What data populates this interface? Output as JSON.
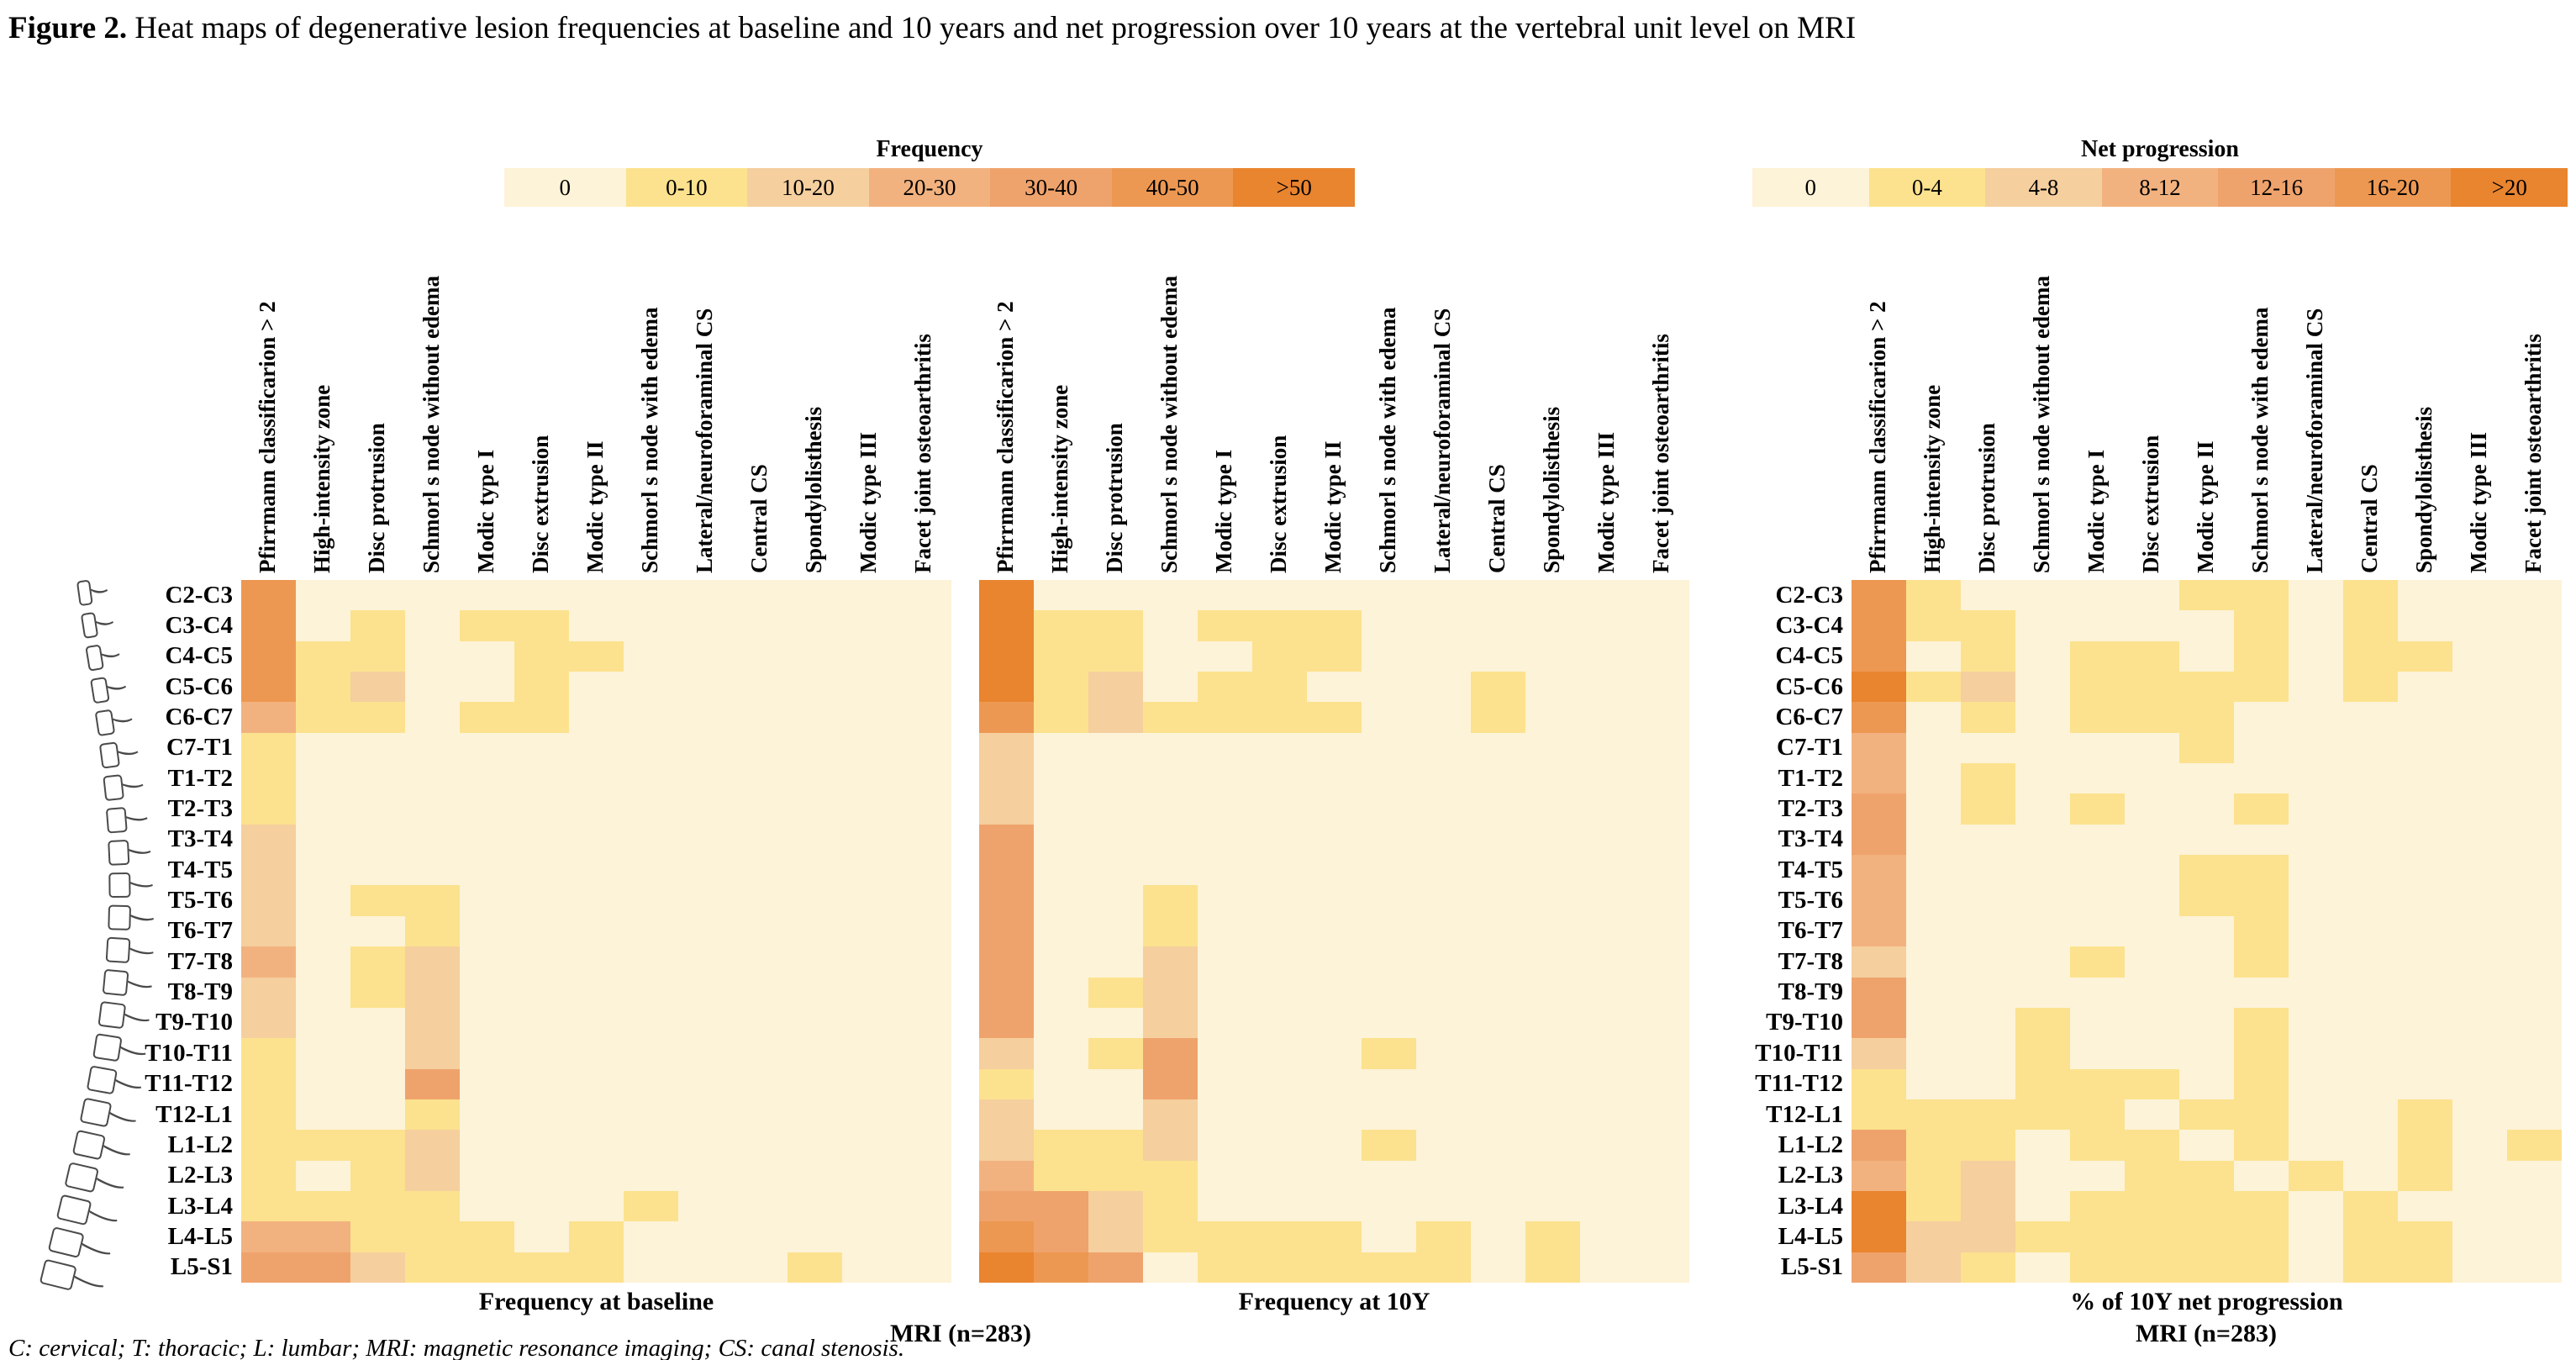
{
  "figure": {
    "label": "Figure 2.",
    "title_rest": " Heat maps of degenerative lesion frequencies at baseline and 10 years and net progression over 10 years at the vertebral unit level on MRI"
  },
  "footer_note": "C: cervical; T: thoracic; L: lumbar; MRI: magnetic resonance imaging; CS: canal stenosis.",
  "bin_colors": [
    "#FDF3D8",
    "#FCE28E",
    "#F5CF9E",
    "#F2B27F",
    "#EFA36C",
    "#ED9852",
    "#E9842F"
  ],
  "legends": {
    "frequency": {
      "title": "Frequency",
      "labels": [
        "0",
        "0-10",
        "10-20",
        "20-30",
        "30-40",
        "40-50",
        ">50"
      ]
    },
    "net_progression": {
      "title": "Net progression",
      "labels": [
        "0",
        "0-4",
        "4-8",
        "8-12",
        "12-16",
        "16-20",
        ">20"
      ]
    }
  },
  "captions": {
    "map1": "Frequency at baseline",
    "map2": "Frequency at 10Y",
    "map3": "% of 10Y net progression",
    "mri": "MRI (n=283)"
  },
  "vertebral_units": [
    "C2-C3",
    "C3-C4",
    "C4-C5",
    "C5-C6",
    "C6-C7",
    "C7-T1",
    "T1-T2",
    "T2-T3",
    "T3-T4",
    "T4-T5",
    "T5-T6",
    "T6-T7",
    "T7-T8",
    "T8-T9",
    "T9-T10",
    "T10-T11",
    "T11-T12",
    "T12-L1",
    "L1-L2",
    "L2-L3",
    "L3-L4",
    "L4-L5",
    "L5-S1"
  ],
  "lesion_types": [
    "Pfirrmann classificarion > 2",
    "High-intensity zone",
    "Disc protrusion",
    "Schmorl s node without edema",
    "Modic type I",
    "Disc extrusion",
    "Modic type II",
    "Schmorl s node with edema",
    "Lateral/neuroforaminal CS",
    "Central CS",
    "Spondylolisthesis",
    "Modic type III",
    "Facet joint osteoarthritis"
  ],
  "chart_data": [
    {
      "type": "heatmap",
      "title": "Frequency at baseline",
      "legend": "Frequency",
      "legend_bins": [
        "0",
        "0-10",
        "10-20",
        "20-30",
        "30-40",
        "40-50",
        ">50"
      ],
      "rows": [
        "C2-C3",
        "C3-C4",
        "C4-C5",
        "C5-C6",
        "C6-C7",
        "C7-T1",
        "T1-T2",
        "T2-T3",
        "T3-T4",
        "T4-T5",
        "T5-T6",
        "T6-T7",
        "T7-T8",
        "T8-T9",
        "T9-T10",
        "T10-T11",
        "T11-T12",
        "T12-L1",
        "L1-L2",
        "L2-L3",
        "L3-L4",
        "L4-L5",
        "L5-S1"
      ],
      "columns": [
        "Pfirrmann classificarion > 2",
        "High-intensity zone",
        "Disc protrusion",
        "Schmorl s node without edema",
        "Modic type I",
        "Disc extrusion",
        "Modic type II",
        "Schmorl s node with edema",
        "Lateral/neuroforaminal CS",
        "Central CS",
        "Spondylolisthesis",
        "Modic type III",
        "Facet joint osteoarthritis"
      ],
      "values_bin_index": [
        [
          5,
          0,
          0,
          0,
          0,
          0,
          0,
          0,
          0,
          0,
          0,
          0,
          0
        ],
        [
          5,
          0,
          1,
          0,
          1,
          1,
          0,
          0,
          0,
          0,
          0,
          0,
          0
        ],
        [
          5,
          1,
          1,
          0,
          0,
          1,
          1,
          0,
          0,
          0,
          0,
          0,
          0
        ],
        [
          5,
          1,
          2,
          0,
          0,
          1,
          0,
          0,
          0,
          0,
          0,
          0,
          0
        ],
        [
          3,
          1,
          1,
          0,
          1,
          1,
          0,
          0,
          0,
          0,
          0,
          0,
          0
        ],
        [
          1,
          0,
          0,
          0,
          0,
          0,
          0,
          0,
          0,
          0,
          0,
          0,
          0
        ],
        [
          1,
          0,
          0,
          0,
          0,
          0,
          0,
          0,
          0,
          0,
          0,
          0,
          0
        ],
        [
          1,
          0,
          0,
          0,
          0,
          0,
          0,
          0,
          0,
          0,
          0,
          0,
          0
        ],
        [
          2,
          0,
          0,
          0,
          0,
          0,
          0,
          0,
          0,
          0,
          0,
          0,
          0
        ],
        [
          2,
          0,
          0,
          0,
          0,
          0,
          0,
          0,
          0,
          0,
          0,
          0,
          0
        ],
        [
          2,
          0,
          1,
          1,
          0,
          0,
          0,
          0,
          0,
          0,
          0,
          0,
          0
        ],
        [
          2,
          0,
          0,
          1,
          0,
          0,
          0,
          0,
          0,
          0,
          0,
          0,
          0
        ],
        [
          3,
          0,
          1,
          2,
          0,
          0,
          0,
          0,
          0,
          0,
          0,
          0,
          0
        ],
        [
          2,
          0,
          1,
          2,
          0,
          0,
          0,
          0,
          0,
          0,
          0,
          0,
          0
        ],
        [
          2,
          0,
          0,
          2,
          0,
          0,
          0,
          0,
          0,
          0,
          0,
          0,
          0
        ],
        [
          1,
          0,
          0,
          2,
          0,
          0,
          0,
          0,
          0,
          0,
          0,
          0,
          0
        ],
        [
          1,
          0,
          0,
          4,
          0,
          0,
          0,
          0,
          0,
          0,
          0,
          0,
          0
        ],
        [
          1,
          0,
          0,
          1,
          0,
          0,
          0,
          0,
          0,
          0,
          0,
          0,
          0
        ],
        [
          1,
          1,
          1,
          2,
          0,
          0,
          0,
          0,
          0,
          0,
          0,
          0,
          0
        ],
        [
          1,
          0,
          1,
          2,
          0,
          0,
          0,
          0,
          0,
          0,
          0,
          0,
          0
        ],
        [
          1,
          1,
          1,
          1,
          0,
          0,
          0,
          1,
          0,
          0,
          0,
          0,
          0
        ],
        [
          3,
          3,
          1,
          1,
          1,
          0,
          1,
          0,
          0,
          0,
          0,
          0,
          0
        ],
        [
          4,
          4,
          2,
          1,
          1,
          1,
          1,
          0,
          0,
          0,
          1,
          0,
          0
        ]
      ]
    },
    {
      "type": "heatmap",
      "title": "Frequency at 10Y",
      "legend": "Frequency",
      "legend_bins": [
        "0",
        "0-10",
        "10-20",
        "20-30",
        "30-40",
        "40-50",
        ">50"
      ],
      "rows": [
        "C2-C3",
        "C3-C4",
        "C4-C5",
        "C5-C6",
        "C6-C7",
        "C7-T1",
        "T1-T2",
        "T2-T3",
        "T3-T4",
        "T4-T5",
        "T5-T6",
        "T6-T7",
        "T7-T8",
        "T8-T9",
        "T9-T10",
        "T10-T11",
        "T11-T12",
        "T12-L1",
        "L1-L2",
        "L2-L3",
        "L3-L4",
        "L4-L5",
        "L5-S1"
      ],
      "columns": [
        "Pfirrmann classificarion > 2",
        "High-intensity zone",
        "Disc protrusion",
        "Schmorl s node without edema",
        "Modic type I",
        "Disc extrusion",
        "Modic type II",
        "Schmorl s node with edema",
        "Lateral/neuroforaminal CS",
        "Central CS",
        "Spondylolisthesis",
        "Modic type III",
        "Facet joint osteoarthritis"
      ],
      "values_bin_index": [
        [
          6,
          0,
          0,
          0,
          0,
          0,
          0,
          0,
          0,
          0,
          0,
          0,
          0
        ],
        [
          6,
          1,
          1,
          0,
          1,
          1,
          1,
          0,
          0,
          0,
          0,
          0,
          0
        ],
        [
          6,
          1,
          1,
          0,
          0,
          1,
          1,
          0,
          0,
          0,
          0,
          0,
          0
        ],
        [
          6,
          1,
          2,
          0,
          1,
          1,
          0,
          0,
          0,
          1,
          0,
          0,
          0
        ],
        [
          5,
          1,
          2,
          1,
          1,
          1,
          1,
          0,
          0,
          1,
          0,
          0,
          0
        ],
        [
          2,
          0,
          0,
          0,
          0,
          0,
          0,
          0,
          0,
          0,
          0,
          0,
          0
        ],
        [
          2,
          0,
          0,
          0,
          0,
          0,
          0,
          0,
          0,
          0,
          0,
          0,
          0
        ],
        [
          2,
          0,
          0,
          0,
          0,
          0,
          0,
          0,
          0,
          0,
          0,
          0,
          0
        ],
        [
          4,
          0,
          0,
          0,
          0,
          0,
          0,
          0,
          0,
          0,
          0,
          0,
          0
        ],
        [
          4,
          0,
          0,
          0,
          0,
          0,
          0,
          0,
          0,
          0,
          0,
          0,
          0
        ],
        [
          4,
          0,
          0,
          1,
          0,
          0,
          0,
          0,
          0,
          0,
          0,
          0,
          0
        ],
        [
          4,
          0,
          0,
          1,
          0,
          0,
          0,
          0,
          0,
          0,
          0,
          0,
          0
        ],
        [
          4,
          0,
          0,
          2,
          0,
          0,
          0,
          0,
          0,
          0,
          0,
          0,
          0
        ],
        [
          4,
          0,
          1,
          2,
          0,
          0,
          0,
          0,
          0,
          0,
          0,
          0,
          0
        ],
        [
          4,
          0,
          0,
          2,
          0,
          0,
          0,
          0,
          0,
          0,
          0,
          0,
          0
        ],
        [
          2,
          0,
          1,
          4,
          0,
          0,
          0,
          1,
          0,
          0,
          0,
          0,
          0
        ],
        [
          1,
          0,
          0,
          4,
          0,
          0,
          0,
          0,
          0,
          0,
          0,
          0,
          0
        ],
        [
          2,
          0,
          0,
          2,
          0,
          0,
          0,
          0,
          0,
          0,
          0,
          0,
          0
        ],
        [
          2,
          1,
          1,
          2,
          0,
          0,
          0,
          1,
          0,
          0,
          0,
          0,
          0
        ],
        [
          3,
          1,
          1,
          1,
          0,
          0,
          0,
          0,
          0,
          0,
          0,
          0,
          0
        ],
        [
          4,
          4,
          2,
          1,
          0,
          0,
          0,
          0,
          0,
          0,
          0,
          0,
          0
        ],
        [
          5,
          4,
          2,
          1,
          1,
          1,
          1,
          0,
          1,
          0,
          1,
          0,
          0
        ],
        [
          6,
          5,
          4,
          0,
          1,
          1,
          1,
          1,
          1,
          0,
          1,
          0,
          0
        ]
      ]
    },
    {
      "type": "heatmap",
      "title": "% of 10Y net progression",
      "legend": "Net progression",
      "legend_bins": [
        "0",
        "0-4",
        "4-8",
        "8-12",
        "12-16",
        "16-20",
        ">20"
      ],
      "rows": [
        "C2-C3",
        "C3-C4",
        "C4-C5",
        "C5-C6",
        "C6-C7",
        "C7-T1",
        "T1-T2",
        "T2-T3",
        "T3-T4",
        "T4-T5",
        "T5-T6",
        "T6-T7",
        "T7-T8",
        "T8-T9",
        "T9-T10",
        "T10-T11",
        "T11-T12",
        "T12-L1",
        "L1-L2",
        "L2-L3",
        "L3-L4",
        "L4-L5",
        "L5-S1"
      ],
      "columns": [
        "Pfirrmann classificarion > 2",
        "High-intensity zone",
        "Disc protrusion",
        "Schmorl s node without edema",
        "Modic type I",
        "Disc extrusion",
        "Modic type II",
        "Schmorl s node with edema",
        "Lateral/neuroforaminal CS",
        "Central CS",
        "Spondylolisthesis",
        "Modic type III",
        "Facet joint osteoarthritis"
      ],
      "values_bin_index": [
        [
          5,
          1,
          0,
          0,
          0,
          0,
          1,
          1,
          0,
          1,
          0,
          0,
          0
        ],
        [
          5,
          1,
          1,
          0,
          0,
          0,
          0,
          1,
          0,
          1,
          0,
          0,
          0
        ],
        [
          5,
          0,
          1,
          0,
          1,
          1,
          0,
          1,
          0,
          1,
          1,
          0,
          0
        ],
        [
          6,
          1,
          2,
          0,
          1,
          1,
          1,
          1,
          0,
          1,
          0,
          0,
          0
        ],
        [
          5,
          0,
          1,
          0,
          1,
          1,
          1,
          0,
          0,
          0,
          0,
          0,
          0
        ],
        [
          3,
          0,
          0,
          0,
          0,
          0,
          1,
          0,
          0,
          0,
          0,
          0,
          0
        ],
        [
          3,
          0,
          1,
          0,
          0,
          0,
          0,
          0,
          0,
          0,
          0,
          0,
          0
        ],
        [
          4,
          0,
          1,
          0,
          1,
          0,
          0,
          1,
          0,
          0,
          0,
          0,
          0
        ],
        [
          4,
          0,
          0,
          0,
          0,
          0,
          0,
          0,
          0,
          0,
          0,
          0,
          0
        ],
        [
          3,
          0,
          0,
          0,
          0,
          0,
          1,
          1,
          0,
          0,
          0,
          0,
          0
        ],
        [
          3,
          0,
          0,
          0,
          0,
          0,
          1,
          1,
          0,
          0,
          0,
          0,
          0
        ],
        [
          3,
          0,
          0,
          0,
          0,
          0,
          0,
          1,
          0,
          0,
          0,
          0,
          0
        ],
        [
          2,
          0,
          0,
          0,
          1,
          0,
          0,
          1,
          0,
          0,
          0,
          0,
          0
        ],
        [
          4,
          0,
          0,
          0,
          0,
          0,
          0,
          0,
          0,
          0,
          0,
          0,
          0
        ],
        [
          4,
          0,
          0,
          1,
          0,
          0,
          0,
          1,
          0,
          0,
          0,
          0,
          0
        ],
        [
          2,
          0,
          0,
          1,
          0,
          0,
          0,
          1,
          0,
          0,
          0,
          0,
          0
        ],
        [
          1,
          0,
          0,
          1,
          1,
          1,
          0,
          1,
          0,
          0,
          0,
          0,
          0
        ],
        [
          1,
          1,
          1,
          1,
          1,
          0,
          1,
          1,
          0,
          0,
          1,
          0,
          0
        ],
        [
          4,
          1,
          1,
          0,
          1,
          1,
          0,
          1,
          0,
          0,
          1,
          0,
          1
        ],
        [
          3,
          1,
          2,
          0,
          0,
          1,
          1,
          0,
          1,
          0,
          1,
          0,
          0
        ],
        [
          6,
          1,
          2,
          0,
          1,
          1,
          1,
          1,
          0,
          1,
          0,
          0,
          0
        ],
        [
          6,
          2,
          2,
          1,
          1,
          1,
          1,
          1,
          0,
          1,
          1,
          0,
          0
        ],
        [
          4,
          2,
          1,
          0,
          1,
          1,
          1,
          1,
          0,
          1,
          1,
          0,
          0
        ]
      ]
    }
  ]
}
